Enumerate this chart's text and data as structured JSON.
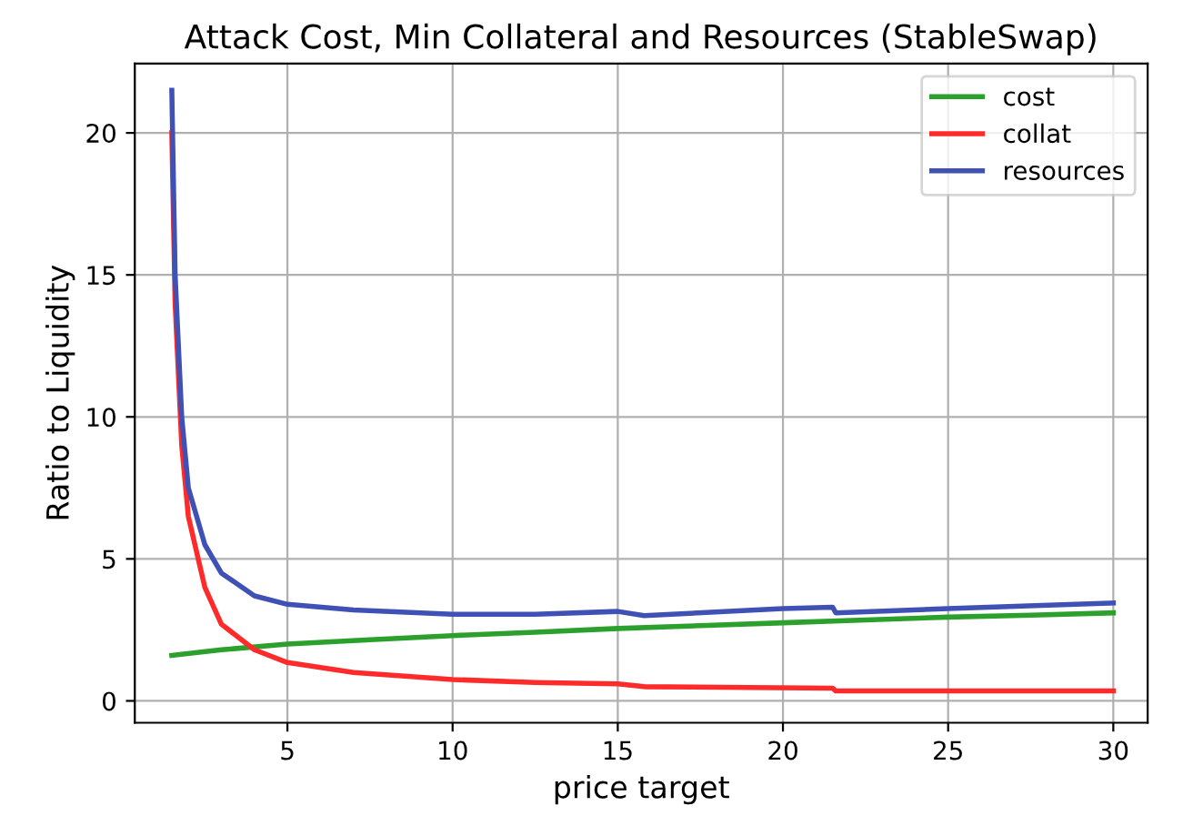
{
  "chart_data": {
    "type": "line",
    "title": "Attack Cost, Min Collateral and Resources (StableSwap)",
    "xlabel": "price target",
    "ylabel": "Ratio to Liquidity",
    "xlim": [
      0.38,
      31.04
    ],
    "ylim": [
      -0.77,
      22.44
    ],
    "xticks": [
      5,
      10,
      15,
      20,
      25,
      30
    ],
    "yticks": [
      0,
      5,
      10,
      15,
      20
    ],
    "grid": true,
    "legend": "top right",
    "series": [
      {
        "name": "cost",
        "color": "#2ca02c",
        "x": [
          1.5,
          3,
          5,
          7.5,
          10,
          12.5,
          15,
          17.5,
          20,
          22.5,
          25,
          27.5,
          30
        ],
        "values": [
          1.6,
          1.8,
          2.0,
          2.15,
          2.3,
          2.42,
          2.55,
          2.65,
          2.75,
          2.85,
          2.95,
          3.02,
          3.1
        ]
      },
      {
        "name": "collat",
        "color": "#ff2a2a",
        "x": [
          1.5,
          1.6,
          1.8,
          2,
          2.5,
          3,
          4,
          5,
          7,
          10,
          12.5,
          15,
          15.8,
          21.5,
          21.6,
          30
        ],
        "values": [
          20,
          14,
          9,
          6.5,
          4,
          2.7,
          1.8,
          1.35,
          1.0,
          0.75,
          0.65,
          0.6,
          0.5,
          0.45,
          0.35,
          0.35
        ]
      },
      {
        "name": "resources",
        "color": "#3f51b5",
        "x": [
          1.5,
          1.6,
          1.8,
          2,
          2.5,
          3,
          4,
          5,
          7,
          10,
          12.5,
          15,
          15.8,
          20,
          21.5,
          21.6,
          25,
          30
        ],
        "values": [
          21.5,
          15,
          10,
          7.5,
          5.5,
          4.5,
          3.7,
          3.4,
          3.2,
          3.05,
          3.05,
          3.15,
          3.0,
          3.25,
          3.3,
          3.1,
          3.25,
          3.45
        ]
      }
    ]
  }
}
